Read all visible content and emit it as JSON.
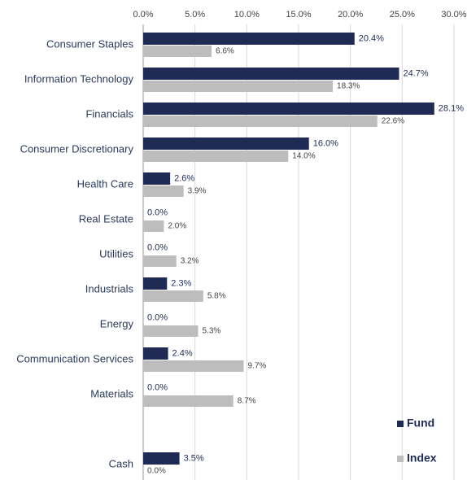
{
  "chart_data": {
    "type": "bar",
    "orientation": "horizontal",
    "categories": [
      "Consumer Staples",
      "Information Technology",
      "Financials",
      "Consumer Discretionary",
      "Health Care",
      "Real Estate",
      "Utilities",
      "Industrials",
      "Energy",
      "Communication Services",
      "Materials",
      null,
      "Cash"
    ],
    "series": [
      {
        "name": "Fund",
        "color": "#1f2a55",
        "values": [
          20.4,
          24.7,
          28.1,
          16.0,
          2.6,
          0.0,
          0.0,
          2.3,
          0.0,
          2.4,
          0.0,
          null,
          3.5
        ],
        "value_labels": [
          "20.4%",
          "24.7%",
          "28.1%",
          "16.0%",
          "2.6%",
          "0.0%",
          "0.0%",
          "2.3%",
          "0.0%",
          "2.4%",
          "0.0%",
          null,
          "3.5%"
        ]
      },
      {
        "name": "Index",
        "color": "#bdbdbd",
        "values": [
          6.6,
          18.3,
          22.6,
          14.0,
          3.9,
          2.0,
          3.2,
          5.8,
          5.3,
          9.7,
          8.7,
          null,
          0.0
        ],
        "value_labels": [
          "6.6%",
          "18.3%",
          "22.6%",
          "14.0%",
          "3.9%",
          "2.0%",
          "3.2%",
          "5.8%",
          "5.3%",
          "9.7%",
          "8.7%",
          null,
          "0.0%"
        ]
      }
    ],
    "xlim": [
      0,
      30
    ],
    "xticks": [
      {
        "value": 0,
        "label": "0.0%"
      },
      {
        "value": 5,
        "label": "5.0%"
      },
      {
        "value": 10,
        "label": "10.0%"
      },
      {
        "value": 15,
        "label": "15.0%"
      },
      {
        "value": 20,
        "label": "20.0%"
      },
      {
        "value": 25,
        "label": "25.0%"
      },
      {
        "value": 30,
        "label": "30.0%"
      }
    ],
    "grid": true,
    "legend": "lower right"
  }
}
